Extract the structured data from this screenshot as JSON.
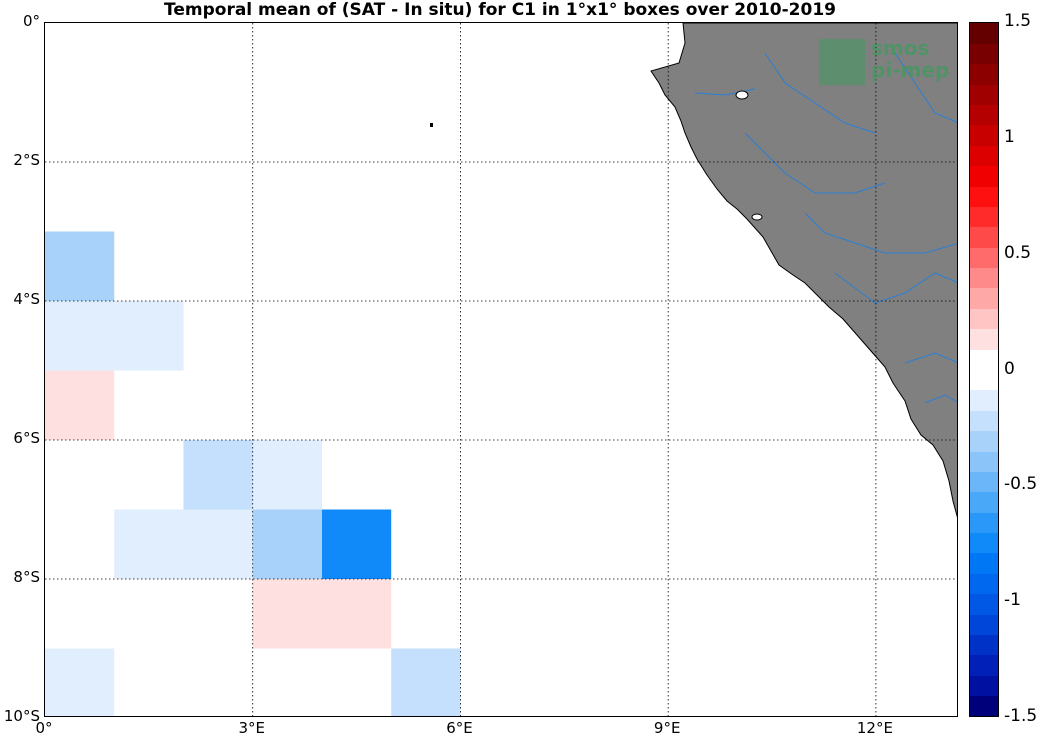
{
  "title": "Temporal mean of (SAT - In situ) for C1 in 1°x1° boxes over 2010-2019",
  "map": {
    "lon_range": [
      0,
      13.2
    ],
    "lat_range": [
      -10,
      0
    ],
    "land_color": "#808080",
    "river_color": "#2a7fd4",
    "grid": true,
    "x_ticks": [
      {
        "lon": 0,
        "label": "0°"
      },
      {
        "lon": 3,
        "label": "3°E"
      },
      {
        "lon": 6,
        "label": "6°E"
      },
      {
        "lon": 9,
        "label": "9°E"
      },
      {
        "lon": 12,
        "label": "12°E"
      }
    ],
    "y_ticks": [
      {
        "lat": 0,
        "label": "0°"
      },
      {
        "lat": -2,
        "label": "2°S"
      },
      {
        "lat": -4,
        "label": "4°S"
      },
      {
        "lat": -6,
        "label": "6°S"
      },
      {
        "lat": -8,
        "label": "8°S"
      },
      {
        "lat": -10,
        "label": "10°S"
      }
    ],
    "cells": [
      {
        "lon": 0,
        "lat": -4,
        "value": -0.35
      },
      {
        "lon": 0,
        "lat": -5,
        "value": -0.1
      },
      {
        "lon": 1,
        "lat": -5,
        "value": -0.1
      },
      {
        "lon": 0,
        "lat": -6,
        "value": 0.1
      },
      {
        "lon": 2,
        "lat": -7,
        "value": -0.25
      },
      {
        "lon": 3,
        "lat": -7,
        "value": -0.1
      },
      {
        "lon": 1,
        "lat": -8,
        "value": -0.1
      },
      {
        "lon": 2,
        "lat": -8,
        "value": -0.1
      },
      {
        "lon": 3,
        "lat": -8,
        "value": -0.35
      },
      {
        "lon": 4,
        "lat": -8,
        "value": -0.75
      },
      {
        "lon": 3,
        "lat": -9,
        "value": 0.1
      },
      {
        "lon": 4,
        "lat": -9,
        "value": 0.1
      },
      {
        "lon": 0,
        "lat": -10,
        "value": -0.1
      },
      {
        "lon": 5,
        "lat": -10,
        "value": -0.25
      }
    ]
  },
  "logo": {
    "line1": "smos",
    "line2": "pi-mep",
    "color": "#3f9a5e"
  },
  "colorbar": {
    "range": [
      -1.5,
      1.5
    ],
    "ticks": [
      {
        "value": 1.5,
        "label": "1.5"
      },
      {
        "value": 1,
        "label": "1"
      },
      {
        "value": 0.5,
        "label": "0.5"
      },
      {
        "value": 0,
        "label": "0"
      },
      {
        "value": -0.5,
        "label": "-0.5"
      },
      {
        "value": -1,
        "label": "-1"
      },
      {
        "value": -1.5,
        "label": "-1.5"
      }
    ],
    "colors": [
      "#00007a",
      "#0010a0",
      "#0020b8",
      "#0032c8",
      "#0046d8",
      "#0058e4",
      "#0068ee",
      "#0078f6",
      "#108af8",
      "#2a98f8",
      "#4aa8f8",
      "#6ab6f8",
      "#8ac4f8",
      "#a8d2fa",
      "#c4e0fc",
      "#e0eefe",
      "#ffffff",
      "#ffffff",
      "#ffe0e0",
      "#ffc4c4",
      "#ffa8a8",
      "#ff8a8a",
      "#ff6a6a",
      "#ff4a4a",
      "#ff2a2a",
      "#ff1010",
      "#f00000",
      "#dc0000",
      "#c80000",
      "#b40000",
      "#a00000",
      "#8c0000",
      "#780000",
      "#640000"
    ]
  }
}
